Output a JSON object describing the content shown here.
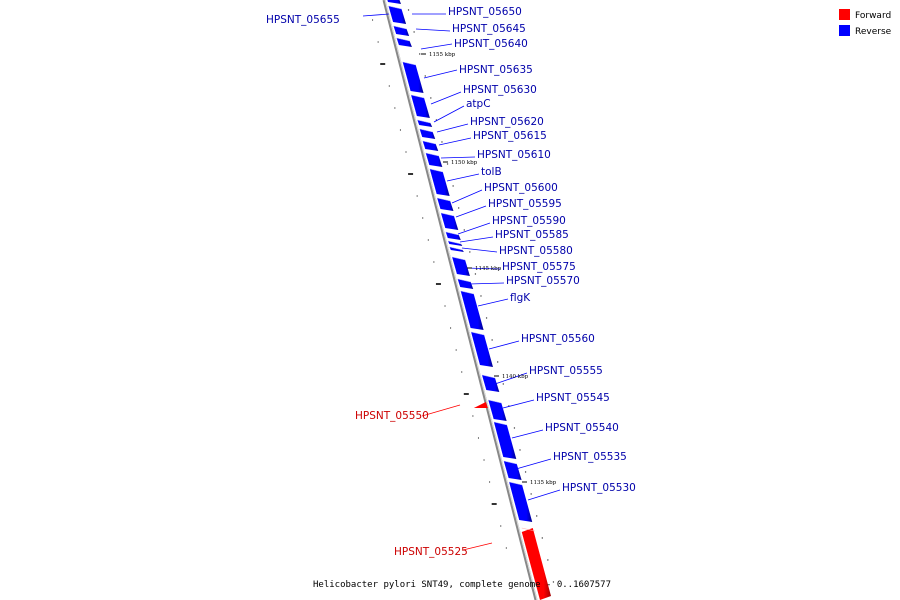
{
  "legend": [
    {
      "label": "Forward",
      "color": "#ff0000"
    },
    {
      "label": "Reverse",
      "color": "#0000ff"
    }
  ],
  "caption": "Helicobacter pylori SNT49, complete genome - 0..1607577",
  "scale_ticks": [
    "1155 kbp",
    "1150 kbp",
    "1145 kbp",
    "1140 kbp",
    "1135 kbp"
  ],
  "colors": {
    "forward": "#ff0000",
    "reverse": "#0000ff",
    "forward_label": "#cc0000",
    "reverse_label": "#0000aa",
    "backbone": "#888888"
  },
  "genes": [
    {
      "name": "HPSNT_05655",
      "strand": "reverse"
    },
    {
      "name": "HPSNT_05650",
      "strand": "reverse"
    },
    {
      "name": "HPSNT_05645",
      "strand": "reverse"
    },
    {
      "name": "HPSNT_05640",
      "strand": "reverse"
    },
    {
      "name": "HPSNT_05635",
      "strand": "reverse"
    },
    {
      "name": "HPSNT_05630",
      "strand": "reverse"
    },
    {
      "name": "atpC",
      "strand": "reverse"
    },
    {
      "name": "HPSNT_05620",
      "strand": "reverse"
    },
    {
      "name": "HPSNT_05615",
      "strand": "reverse"
    },
    {
      "name": "HPSNT_05610",
      "strand": "reverse"
    },
    {
      "name": "tolB",
      "strand": "reverse"
    },
    {
      "name": "HPSNT_05600",
      "strand": "reverse"
    },
    {
      "name": "HPSNT_05595",
      "strand": "reverse"
    },
    {
      "name": "HPSNT_05590",
      "strand": "reverse"
    },
    {
      "name": "HPSNT_05585",
      "strand": "reverse"
    },
    {
      "name": "HPSNT_05580",
      "strand": "reverse"
    },
    {
      "name": "HPSNT_05575",
      "strand": "reverse"
    },
    {
      "name": "HPSNT_05570",
      "strand": "reverse"
    },
    {
      "name": "flgK",
      "strand": "reverse"
    },
    {
      "name": "HPSNT_05560",
      "strand": "reverse"
    },
    {
      "name": "HPSNT_05555",
      "strand": "reverse"
    },
    {
      "name": "HPSNT_05550",
      "strand": "forward"
    },
    {
      "name": "HPSNT_05545",
      "strand": "reverse"
    },
    {
      "name": "HPSNT_05540",
      "strand": "reverse"
    },
    {
      "name": "HPSNT_05535",
      "strand": "reverse"
    },
    {
      "name": "HPSNT_05530",
      "strand": "reverse"
    },
    {
      "name": "HPSNT_05525",
      "strand": "forward"
    }
  ]
}
